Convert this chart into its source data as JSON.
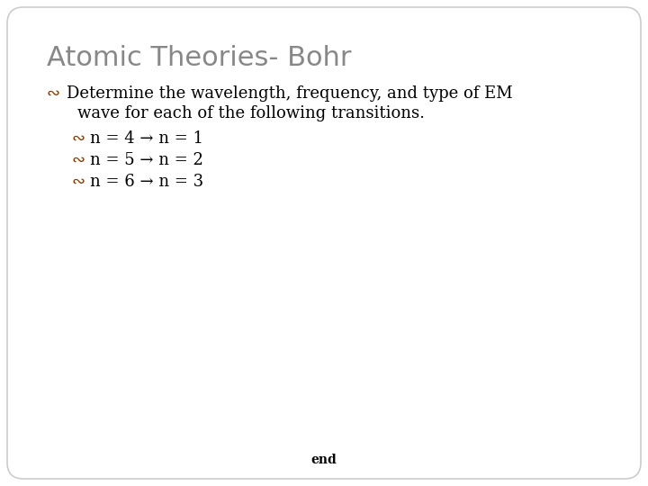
{
  "title": "Atomic Theories- Bohr",
  "title_color": "#888888",
  "title_fontsize": 22,
  "background_color": "#ffffff",
  "border_color": "#cccccc",
  "bullet_color": "#8B3A00",
  "text_color": "#000000",
  "footer_text": "end",
  "footer_color": "#000000",
  "main_text_line1": "Determine the wavelength, frequency, and type of EM",
  "main_text_line2": "wave for each of the following transitions.",
  "sub_items": [
    "n = 4 → n = 1",
    "n = 5 → n = 2",
    "n = 6 → n = 3"
  ],
  "main_bullet": "∾",
  "sub_bullet": "∾",
  "body_fontsize": 13,
  "sub_fontsize": 13
}
